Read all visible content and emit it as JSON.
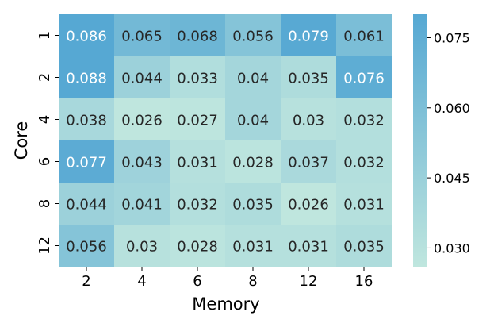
{
  "chart_data": {
    "type": "heatmap",
    "xlabel": "Memory",
    "ylabel": "Core",
    "x_categories": [
      "2",
      "4",
      "6",
      "8",
      "12",
      "16"
    ],
    "y_categories": [
      "1",
      "2",
      "4",
      "6",
      "8",
      "12"
    ],
    "values": [
      [
        0.086,
        0.065,
        0.068,
        0.056,
        0.079,
        0.061
      ],
      [
        0.088,
        0.044,
        0.033,
        0.04,
        0.035,
        0.076
      ],
      [
        0.038,
        0.026,
        0.027,
        0.04,
        0.03,
        0.032
      ],
      [
        0.077,
        0.043,
        0.031,
        0.028,
        0.037,
        0.032
      ],
      [
        0.044,
        0.041,
        0.032,
        0.035,
        0.026,
        0.031
      ],
      [
        0.056,
        0.03,
        0.028,
        0.031,
        0.031,
        0.035
      ]
    ],
    "cell_labels": [
      [
        "0.086",
        "0.065",
        "0.068",
        "0.056",
        "0.079",
        "0.061"
      ],
      [
        "0.088",
        "0.044",
        "0.033",
        "0.04",
        "0.035",
        "0.076"
      ],
      [
        "0.038",
        "0.026",
        "0.027",
        "0.04",
        "0.03",
        "0.032"
      ],
      [
        "0.077",
        "0.043",
        "0.031",
        "0.028",
        "0.037",
        "0.032"
      ],
      [
        "0.044",
        "0.041",
        "0.032",
        "0.035",
        "0.026",
        "0.031"
      ],
      [
        "0.056",
        "0.03",
        "0.028",
        "0.031",
        "0.031",
        "0.035"
      ]
    ],
    "colorbar": {
      "range": [
        0.026,
        0.08
      ],
      "ticks": [
        0.03,
        0.045,
        0.06,
        0.075
      ],
      "tick_labels": [
        "0.030",
        "0.045",
        "0.060",
        "0.075"
      ],
      "color_low": "#bfe6de",
      "color_high": "#56a8d3"
    },
    "text_color_dark": "#262626",
    "text_color_light": "#ffffff",
    "grid": false,
    "legend": "colorbar-right"
  }
}
